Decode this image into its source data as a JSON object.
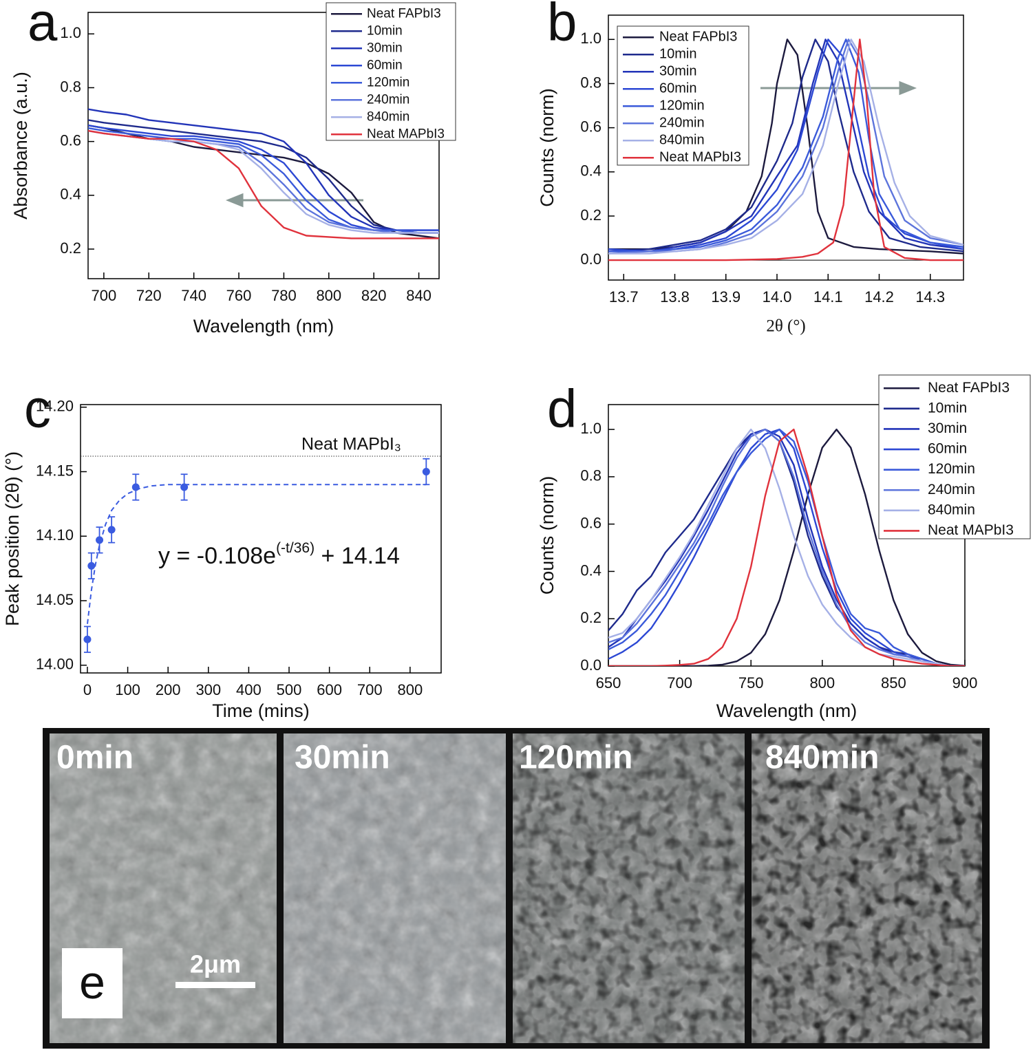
{
  "chart_data": [
    {
      "type": "line",
      "panel_label": "a",
      "x_label": "Wavelength (nm)",
      "y_label": "Absorbance (a.u.)",
      "xlim": [
        693,
        849
      ],
      "ylim": [
        0.09,
        1.08
      ],
      "xticks": [
        700,
        720,
        740,
        760,
        780,
        800,
        820,
        840
      ],
      "yticks": [
        0.2,
        0.4,
        0.6,
        0.8,
        {
          "value": 1.0,
          "label": "1.0"
        }
      ],
      "x": [
        693,
        700,
        710,
        720,
        730,
        740,
        750,
        760,
        770,
        780,
        790,
        800,
        810,
        820,
        830,
        840,
        849
      ],
      "series": [
        {
          "name": "Neat FAPbI3",
          "color": "#1c1a3e",
          "values": [
            0.66,
            0.65,
            0.63,
            0.61,
            0.6,
            0.58,
            0.57,
            0.56,
            0.55,
            0.54,
            0.52,
            0.48,
            0.41,
            0.3,
            0.26,
            0.25,
            0.24
          ]
        },
        {
          "name": "10min",
          "color": "#1e2a8c",
          "values": [
            0.68,
            0.67,
            0.66,
            0.65,
            0.64,
            0.63,
            0.62,
            0.61,
            0.6,
            0.58,
            0.54,
            0.46,
            0.36,
            0.29,
            0.27,
            0.26,
            0.26
          ]
        },
        {
          "name": "30min",
          "color": "#2234b8",
          "values": [
            0.72,
            0.71,
            0.7,
            0.68,
            0.67,
            0.66,
            0.65,
            0.64,
            0.63,
            0.6,
            0.52,
            0.4,
            0.32,
            0.28,
            0.27,
            0.27,
            0.27
          ]
        },
        {
          "name": "60min",
          "color": "#2c48d4",
          "values": [
            0.66,
            0.65,
            0.64,
            0.63,
            0.62,
            0.62,
            0.61,
            0.6,
            0.57,
            0.52,
            0.42,
            0.34,
            0.29,
            0.27,
            0.27,
            0.27,
            0.27
          ]
        },
        {
          "name": "120min",
          "color": "#3a5ada",
          "values": [
            0.65,
            0.64,
            0.63,
            0.62,
            0.61,
            0.61,
            0.6,
            0.59,
            0.55,
            0.48,
            0.38,
            0.31,
            0.28,
            0.27,
            0.27,
            0.26,
            0.26
          ]
        },
        {
          "name": "240min",
          "color": "#5c74dc",
          "values": [
            0.64,
            0.63,
            0.62,
            0.61,
            0.6,
            0.6,
            0.59,
            0.58,
            0.52,
            0.44,
            0.35,
            0.3,
            0.28,
            0.27,
            0.26,
            0.26,
            0.26
          ]
        },
        {
          "name": "840min",
          "color": "#a5b0e6",
          "values": [
            0.64,
            0.63,
            0.62,
            0.61,
            0.6,
            0.6,
            0.59,
            0.57,
            0.5,
            0.41,
            0.33,
            0.29,
            0.27,
            0.26,
            0.26,
            0.26,
            0.26
          ]
        },
        {
          "name": "Neat MAPbI3",
          "color": "#e0323c",
          "values": [
            0.64,
            0.63,
            0.62,
            0.61,
            0.61,
            0.6,
            0.57,
            0.5,
            0.36,
            0.28,
            0.25,
            0.245,
            0.24,
            0.24,
            0.24,
            0.24,
            0.24
          ]
        }
      ]
    },
    {
      "type": "line",
      "panel_label": "b",
      "x_label": "2θ (°)",
      "y_label": "Counts (norm)",
      "xlim": [
        13.67,
        14.365
      ],
      "ylim": [
        -0.09,
        1.11
      ],
      "xticks": [
        13.7,
        13.8,
        13.9,
        {
          "value": 14.0,
          "label": "14.0"
        },
        14.1,
        14.2,
        14.3
      ],
      "yticks": [
        {
          "value": 0,
          "label": "0.0"
        },
        0.2,
        0.4,
        0.6,
        0.8,
        {
          "value": 1.0,
          "label": "1.0"
        }
      ],
      "series": [
        {
          "name": "Neat FAPbI3",
          "color": "#1c1a3e",
          "x": [
            13.67,
            13.75,
            13.8,
            13.85,
            13.9,
            13.94,
            13.97,
            13.99,
            14.0,
            14.02,
            14.04,
            14.06,
            14.08,
            14.1,
            14.15,
            14.2,
            14.3,
            14.365
          ],
          "values": [
            0.05,
            0.05,
            0.06,
            0.08,
            0.13,
            0.22,
            0.38,
            0.62,
            0.8,
            1.0,
            0.93,
            0.6,
            0.22,
            0.1,
            0.06,
            0.05,
            0.04,
            0.03
          ]
        },
        {
          "name": "10min",
          "color": "#1e2a8c",
          "x": [
            13.67,
            13.75,
            13.8,
            13.85,
            13.9,
            13.95,
            14.0,
            14.03,
            14.05,
            14.075,
            14.1,
            14.12,
            14.15,
            14.18,
            14.22,
            14.28,
            14.365
          ],
          "values": [
            0.04,
            0.05,
            0.07,
            0.09,
            0.14,
            0.24,
            0.45,
            0.62,
            0.83,
            1.0,
            0.9,
            0.68,
            0.4,
            0.22,
            0.1,
            0.06,
            0.04
          ]
        },
        {
          "name": "30min",
          "color": "#2234b8",
          "x": [
            13.67,
            13.75,
            13.8,
            13.85,
            13.9,
            13.95,
            14.0,
            14.04,
            14.07,
            14.095,
            14.12,
            14.14,
            14.17,
            14.2,
            14.25,
            14.3,
            14.365
          ],
          "values": [
            0.04,
            0.04,
            0.06,
            0.08,
            0.13,
            0.2,
            0.38,
            0.52,
            0.8,
            1.0,
            0.9,
            0.7,
            0.4,
            0.22,
            0.1,
            0.07,
            0.05
          ]
        },
        {
          "name": "60min",
          "color": "#2c48d4",
          "x": [
            13.67,
            13.75,
            13.8,
            13.85,
            13.9,
            13.95,
            14.0,
            14.04,
            14.08,
            14.1,
            14.13,
            14.15,
            14.18,
            14.21,
            14.25,
            14.3,
            14.365
          ],
          "values": [
            0.05,
            0.04,
            0.05,
            0.07,
            0.1,
            0.18,
            0.32,
            0.5,
            0.85,
            1.0,
            0.92,
            0.7,
            0.38,
            0.2,
            0.12,
            0.08,
            0.05
          ]
        },
        {
          "name": "120min",
          "color": "#3a5ada",
          "x": [
            13.67,
            13.75,
            13.8,
            13.85,
            13.9,
            13.95,
            14.0,
            14.05,
            14.09,
            14.12,
            14.135,
            14.16,
            14.18,
            14.2,
            14.24,
            14.3,
            14.365
          ],
          "values": [
            0.04,
            0.04,
            0.05,
            0.06,
            0.09,
            0.14,
            0.25,
            0.42,
            0.65,
            0.92,
            1.0,
            0.85,
            0.55,
            0.3,
            0.14,
            0.08,
            0.06
          ]
        },
        {
          "name": "240min",
          "color": "#5c74dc",
          "x": [
            13.67,
            13.75,
            13.8,
            13.85,
            13.9,
            13.95,
            14.0,
            14.05,
            14.09,
            14.12,
            14.14,
            14.16,
            14.18,
            14.21,
            14.25,
            14.3,
            14.365
          ],
          "values": [
            0.03,
            0.04,
            0.04,
            0.05,
            0.08,
            0.12,
            0.22,
            0.38,
            0.6,
            0.86,
            1.0,
            0.92,
            0.72,
            0.38,
            0.18,
            0.1,
            0.07
          ]
        },
        {
          "name": "840min",
          "color": "#a5b0e6",
          "x": [
            13.67,
            13.75,
            13.8,
            13.85,
            13.9,
            13.95,
            14.0,
            14.05,
            14.09,
            14.12,
            14.145,
            14.17,
            14.2,
            14.23,
            14.26,
            14.3,
            14.365
          ],
          "values": [
            0.03,
            0.03,
            0.04,
            0.05,
            0.07,
            0.1,
            0.18,
            0.3,
            0.52,
            0.8,
            1.0,
            0.9,
            0.6,
            0.35,
            0.2,
            0.11,
            0.07
          ]
        },
        {
          "name": "Neat MAPbI3",
          "color": "#e0323c",
          "x": [
            13.67,
            13.9,
            14.0,
            14.05,
            14.08,
            14.11,
            14.13,
            14.15,
            14.162,
            14.175,
            14.19,
            14.21,
            14.25,
            14.3,
            14.365
          ],
          "values": [
            0,
            0,
            0.005,
            0.015,
            0.03,
            0.08,
            0.25,
            0.72,
            1.0,
            0.75,
            0.3,
            0.06,
            0.01,
            0,
            0
          ]
        }
      ]
    },
    {
      "type": "scatter",
      "panel_label": "c",
      "x_label": "Time (mins)",
      "y_label": "Peak position (2θ) (°)",
      "xlim": [
        -17,
        877
      ],
      "ylim": [
        13.994,
        14.202
      ],
      "xticks": [
        0,
        100,
        200,
        300,
        400,
        500,
        600,
        700,
        800
      ],
      "yticks": [
        {
          "value": 14.0,
          "label": "14.00"
        },
        14.05,
        {
          "value": 14.1,
          "label": "14.10"
        },
        14.15,
        {
          "value": 14.2,
          "label": "14.20"
        }
      ],
      "series": [
        {
          "color": "#3a5be0",
          "x": [
            0,
            10,
            30,
            60,
            120,
            240,
            840
          ],
          "values": [
            14.02,
            14.077,
            14.097,
            14.105,
            14.138,
            14.138,
            14.15
          ],
          "errors": [
            0.01,
            0.01,
            0.01,
            0.01,
            0.01,
            0.01,
            0.01
          ]
        }
      ],
      "fit": {
        "color": "#3a5be0",
        "x": [
          0,
          10,
          20,
          30,
          45,
          60,
          80,
          100,
          130,
          160,
          200,
          300,
          840
        ],
        "values": [
          14.032,
          14.058,
          14.078,
          14.093,
          14.109,
          14.12,
          14.128,
          14.133,
          14.137,
          14.139,
          14.14,
          14.14,
          14.14
        ]
      },
      "reference": {
        "value": 14.162,
        "label": "Neat MAPbI₃"
      },
      "equation": {
        "base": "y = -0.108e",
        "sup": "(-t/36)",
        "tail": " + 14.14"
      }
    },
    {
      "type": "line",
      "panel_label": "d",
      "x_label": "Wavelength (nm)",
      "y_label": "Counts (norm)",
      "xlim": [
        650,
        900
      ],
      "ylim": [
        0,
        1.105
      ],
      "xticks": [
        650,
        700,
        750,
        800,
        850,
        900
      ],
      "yticks": [
        {
          "value": 0,
          "label": "0.0"
        },
        0.2,
        0.4,
        0.6,
        0.8,
        {
          "value": 1.0,
          "label": "1.0"
        }
      ],
      "x": [
        650,
        660,
        670,
        680,
        690,
        700,
        710,
        720,
        730,
        740,
        750,
        760,
        770,
        780,
        790,
        800,
        810,
        820,
        830,
        840,
        850,
        860,
        870,
        880,
        890,
        900
      ],
      "series": [
        {
          "name": "Neat FAPbI3",
          "color": "#1c1a3e",
          "values": [
            0,
            0,
            0,
            0,
            0,
            0.0001,
            0.0003,
            0.0015,
            0.006,
            0.02,
            0.056,
            0.135,
            0.278,
            0.487,
            0.726,
            0.923,
            1.0,
            0.923,
            0.726,
            0.487,
            0.278,
            0.135,
            0.056,
            0.02,
            0.006,
            0.0015
          ]
        },
        {
          "name": "10min",
          "color": "#1e2a8c",
          "values": [
            0.15,
            0.22,
            0.32,
            0.38,
            0.48,
            0.55,
            0.62,
            0.72,
            0.82,
            0.92,
            0.98,
            1.0,
            0.95,
            0.78,
            0.55,
            0.38,
            0.25,
            0.18,
            0.12,
            0.08,
            0.06,
            0.05,
            0.03,
            0.01,
            0,
            0
          ]
        },
        {
          "name": "30min",
          "color": "#2234b8",
          "values": [
            0.08,
            0.12,
            0.2,
            0.28,
            0.36,
            0.45,
            0.55,
            0.66,
            0.78,
            0.9,
            0.98,
            1.0,
            0.97,
            0.85,
            0.62,
            0.42,
            0.28,
            0.18,
            0.12,
            0.08,
            0.05,
            0.04,
            0.03,
            0.01,
            0,
            0
          ]
        },
        {
          "name": "60min",
          "color": "#2c48d4",
          "values": [
            0.03,
            0.06,
            0.1,
            0.16,
            0.25,
            0.35,
            0.46,
            0.58,
            0.7,
            0.82,
            0.92,
            0.98,
            1.0,
            0.92,
            0.72,
            0.5,
            0.32,
            0.2,
            0.14,
            0.1,
            0.06,
            0.04,
            0.02,
            0.01,
            0,
            0
          ]
        },
        {
          "name": "120min",
          "color": "#3a5ada",
          "values": [
            0.07,
            0.1,
            0.15,
            0.22,
            0.3,
            0.4,
            0.5,
            0.6,
            0.72,
            0.82,
            0.9,
            0.96,
            1.0,
            0.95,
            0.78,
            0.55,
            0.35,
            0.22,
            0.16,
            0.14,
            0.08,
            0.05,
            0.03,
            0.01,
            0,
            0
          ]
        },
        {
          "name": "240min",
          "color": "#5c74dc",
          "values": [
            0.1,
            0.12,
            0.18,
            0.26,
            0.34,
            0.43,
            0.52,
            0.63,
            0.76,
            0.88,
            0.97,
            1.0,
            0.95,
            0.8,
            0.58,
            0.4,
            0.26,
            0.16,
            0.1,
            0.07,
            0.05,
            0.04,
            0.02,
            0.01,
            0,
            0
          ]
        },
        {
          "name": "840min",
          "color": "#a5b0e6",
          "values": [
            0.12,
            0.14,
            0.2,
            0.28,
            0.37,
            0.46,
            0.56,
            0.68,
            0.8,
            0.92,
            1.0,
            0.92,
            0.75,
            0.55,
            0.38,
            0.26,
            0.18,
            0.12,
            0.08,
            0.05,
            0.04,
            0.03,
            0.02,
            0.01,
            0,
            0
          ]
        },
        {
          "name": "Neat MAPbI3",
          "color": "#e0323c",
          "values": [
            0,
            0,
            0,
            0,
            0.002,
            0.005,
            0.01,
            0.03,
            0.08,
            0.2,
            0.42,
            0.72,
            0.95,
            1.0,
            0.8,
            0.55,
            0.3,
            0.15,
            0.08,
            0.05,
            0.03,
            0.02,
            0.01,
            0.005,
            0,
            0
          ]
        }
      ]
    }
  ],
  "image_panel": {
    "label": "e",
    "frames": [
      "0min",
      "30min",
      "120min",
      "840min"
    ],
    "scale_bar": "2μm"
  }
}
